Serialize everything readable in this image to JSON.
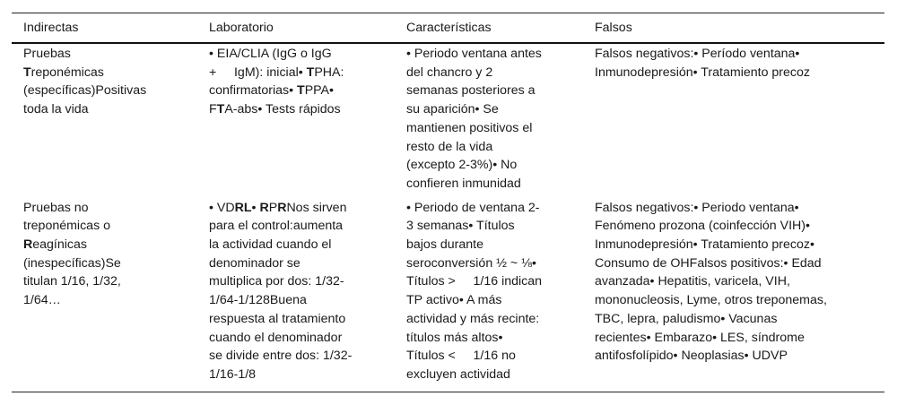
{
  "headers": [
    "Indirectas",
    "Laboratorio",
    "Características",
    "Falsos"
  ],
  "rows": [
    [
      [
        [
          {
            "text": "Pruebas"
          }
        ],
        [
          {
            "text": "T",
            "bold": true
          },
          {
            "text": "reponémicas"
          }
        ],
        [
          {
            "text": "(específicas)Positivas"
          }
        ],
        [
          {
            "text": "toda la vida"
          }
        ]
      ],
      [
        [
          {
            "text": "• EIA/CLIA (IgG o IgG"
          }
        ],
        [
          {
            "text": "+     IgM): inicial• "
          },
          {
            "text": "T",
            "bold": true
          },
          {
            "text": "PHA:"
          }
        ],
        [
          {
            "text": "confirmatorias• "
          },
          {
            "text": "T",
            "bold": true
          },
          {
            "text": "PPA•"
          }
        ],
        [
          {
            "text": "F"
          },
          {
            "text": "T",
            "bold": true
          },
          {
            "text": "A-abs• Tests rápidos"
          }
        ]
      ],
      [
        [
          {
            "text": "• Periodo ventana antes"
          }
        ],
        [
          {
            "text": "del chancro y 2"
          }
        ],
        [
          {
            "text": "semanas posteriores a"
          }
        ],
        [
          {
            "text": "su aparición• Se"
          }
        ],
        [
          {
            "text": "mantienen positivos el"
          }
        ],
        [
          {
            "text": "resto de la vida"
          }
        ],
        [
          {
            "text": "(excepto 2-3%)• No"
          }
        ],
        [
          {
            "text": "confieren inmunidad"
          }
        ]
      ],
      [
        [
          {
            "text": "Falsos negativos:• Período ventana•"
          }
        ],
        [
          {
            "text": "Inmunodepresión• Tratamiento precoz"
          }
        ]
      ]
    ],
    [
      [
        [
          {
            "text": "Pruebas no"
          }
        ],
        [
          {
            "text": "treponémicas o"
          }
        ],
        [
          {
            "text": "R",
            "bold": true
          },
          {
            "text": "eagínicas"
          }
        ],
        [
          {
            "text": "(inespecíficas)Se"
          }
        ],
        [
          {
            "text": "titulan 1/16, 1/32,"
          }
        ],
        [
          {
            "text": "1/64…"
          }
        ]
      ],
      [
        [
          {
            "text": "• VD"
          },
          {
            "text": "RL",
            "bold": true
          },
          {
            "text": "• "
          },
          {
            "text": "R",
            "bold": true
          },
          {
            "text": "P"
          },
          {
            "text": "R",
            "bold": true
          },
          {
            "text": "Nos sirven"
          }
        ],
        [
          {
            "text": "para el control:aumenta"
          }
        ],
        [
          {
            "text": "la actividad cuando el"
          }
        ],
        [
          {
            "text": "denominador se"
          }
        ],
        [
          {
            "text": "multiplica por dos: 1/32-"
          }
        ],
        [
          {
            "text": "1/64-1/128Buena"
          }
        ],
        [
          {
            "text": "respuesta al tratamiento"
          }
        ],
        [
          {
            "text": "cuando el denominador"
          }
        ],
        [
          {
            "text": "se divide entre dos: 1/32-"
          }
        ],
        [
          {
            "text": "1/16-1/8"
          }
        ]
      ],
      [
        [
          {
            "text": "• Periodo de ventana 2-"
          }
        ],
        [
          {
            "text": "3 semanas• Títulos"
          }
        ],
        [
          {
            "text": "bajos durante"
          }
        ],
        [
          {
            "text": "seroconversión ½ ~ ⅛•"
          }
        ],
        [
          {
            "text": "Títulos >     1/16 indican"
          }
        ],
        [
          {
            "text": "TP activo• A más"
          }
        ],
        [
          {
            "text": "actividad y más recinte:"
          }
        ],
        [
          {
            "text": "títulos más altos•"
          }
        ],
        [
          {
            "text": "Títulos <     1/16 no"
          }
        ],
        [
          {
            "text": "excluyen actividad"
          }
        ]
      ],
      [
        [
          {
            "text": "Falsos negativos:• Periodo ventana•"
          }
        ],
        [
          {
            "text": "Fenómeno prozona (coinfección VIH)•"
          }
        ],
        [
          {
            "text": "Inmunodepresión• Tratamiento precoz•"
          }
        ],
        [
          {
            "text": "Consumo de OHFalsos positivos:• Edad"
          }
        ],
        [
          {
            "text": "avanzada• Hepatitis, varicela, VIH,"
          }
        ],
        [
          {
            "text": "mononucleosis, Lyme, otros treponemas,"
          }
        ],
        [
          {
            "text": "TBC, lepra, paludismo• Vacunas"
          }
        ],
        [
          {
            "text": "recientes• Embarazo• LES, síndrome"
          }
        ],
        [
          {
            "text": "antifosfolípido• Neoplasias• UDVP"
          }
        ]
      ]
    ]
  ]
}
